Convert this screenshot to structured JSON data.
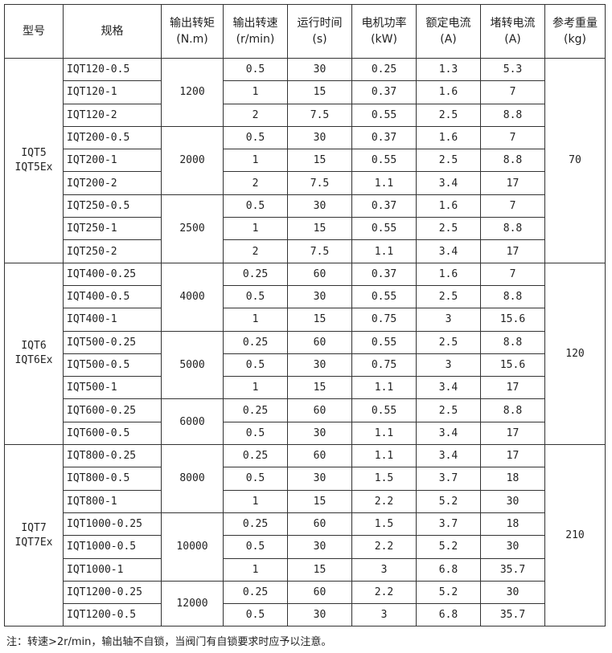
{
  "headers": [
    {
      "label": "型号",
      "unit": ""
    },
    {
      "label": "规格",
      "unit": ""
    },
    {
      "label": "输出转矩",
      "unit": "(N.m)"
    },
    {
      "label": "输出转速",
      "unit": "(r/min)"
    },
    {
      "label": "运行时间",
      "unit": "(s)"
    },
    {
      "label": "电机功率",
      "unit": "(kW)"
    },
    {
      "label": "额定电流",
      "unit": "(A)"
    },
    {
      "label": "堵转电流",
      "unit": "(A)"
    },
    {
      "label": "参考重量",
      "unit": "(kg)"
    }
  ],
  "groups": [
    {
      "model": [
        "IQT5",
        "IQT5Ex"
      ],
      "weight": "70",
      "torques": [
        {
          "torque": "1200",
          "rows": [
            [
              "IQT120-0.5",
              "0.5",
              "30",
              "0.25",
              "1.3",
              "5.3"
            ],
            [
              "IQT120-1",
              "1",
              "15",
              "0.37",
              "1.6",
              "7"
            ],
            [
              "IQT120-2",
              "2",
              "7.5",
              "0.55",
              "2.5",
              "8.8"
            ]
          ]
        },
        {
          "torque": "2000",
          "rows": [
            [
              "IQT200-0.5",
              "0.5",
              "30",
              "0.37",
              "1.6",
              "7"
            ],
            [
              "IQT200-1",
              "1",
              "15",
              "0.55",
              "2.5",
              "8.8"
            ],
            [
              "IQT200-2",
              "2",
              "7.5",
              "1.1",
              "3.4",
              "17"
            ]
          ]
        },
        {
          "torque": "2500",
          "rows": [
            [
              "IQT250-0.5",
              "0.5",
              "30",
              "0.37",
              "1.6",
              "7"
            ],
            [
              "IQT250-1",
              "1",
              "15",
              "0.55",
              "2.5",
              "8.8"
            ],
            [
              "IQT250-2",
              "2",
              "7.5",
              "1.1",
              "3.4",
              "17"
            ]
          ]
        }
      ]
    },
    {
      "model": [
        "IQT6",
        "IQT6Ex"
      ],
      "weight": "120",
      "torques": [
        {
          "torque": "4000",
          "rows": [
            [
              "IQT400-0.25",
              "0.25",
              "60",
              "0.37",
              "1.6",
              "7"
            ],
            [
              "IQT400-0.5",
              "0.5",
              "30",
              "0.55",
              "2.5",
              "8.8"
            ],
            [
              "IQT400-1",
              "1",
              "15",
              "0.75",
              "3",
              "15.6"
            ]
          ]
        },
        {
          "torque": "5000",
          "rows": [
            [
              "IQT500-0.25",
              "0.25",
              "60",
              "0.55",
              "2.5",
              "8.8"
            ],
            [
              "IQT500-0.5",
              "0.5",
              "30",
              "0.75",
              "3",
              "15.6"
            ],
            [
              "IQT500-1",
              "1",
              "15",
              "1.1",
              "3.4",
              "17"
            ]
          ]
        },
        {
          "torque": "6000",
          "rows": [
            [
              "IQT600-0.25",
              "0.25",
              "60",
              "0.55",
              "2.5",
              "8.8"
            ],
            [
              "IQT600-0.5",
              "0.5",
              "30",
              "1.1",
              "3.4",
              "17"
            ]
          ]
        }
      ]
    },
    {
      "model": [
        "IQT7",
        "IQT7Ex"
      ],
      "weight": "210",
      "torques": [
        {
          "torque": "8000",
          "rows": [
            [
              "IQT800-0.25",
              "0.25",
              "60",
              "1.1",
              "3.4",
              "17"
            ],
            [
              "IQT800-0.5",
              "0.5",
              "30",
              "1.5",
              "3.7",
              "18"
            ],
            [
              "IQT800-1",
              "1",
              "15",
              "2.2",
              "5.2",
              "30"
            ]
          ]
        },
        {
          "torque": "10000",
          "rows": [
            [
              "IQT1000-0.25",
              "0.25",
              "60",
              "1.5",
              "3.7",
              "18"
            ],
            [
              "IQT1000-0.5",
              "0.5",
              "30",
              "2.2",
              "5.2",
              "30"
            ],
            [
              "IQT1000-1",
              "1",
              "15",
              "3",
              "6.8",
              "35.7"
            ]
          ]
        },
        {
          "torque": "12000",
          "rows": [
            [
              "IQT1200-0.25",
              "0.25",
              "60",
              "2.2",
              "5.2",
              "30"
            ],
            [
              "IQT1200-0.5",
              "0.5",
              "30",
              "3",
              "6.8",
              "35.7"
            ]
          ]
        }
      ]
    }
  ],
  "note": "注：转速>2r/min，输出轴不自锁，当阀门有自锁要求时应予以注意。"
}
